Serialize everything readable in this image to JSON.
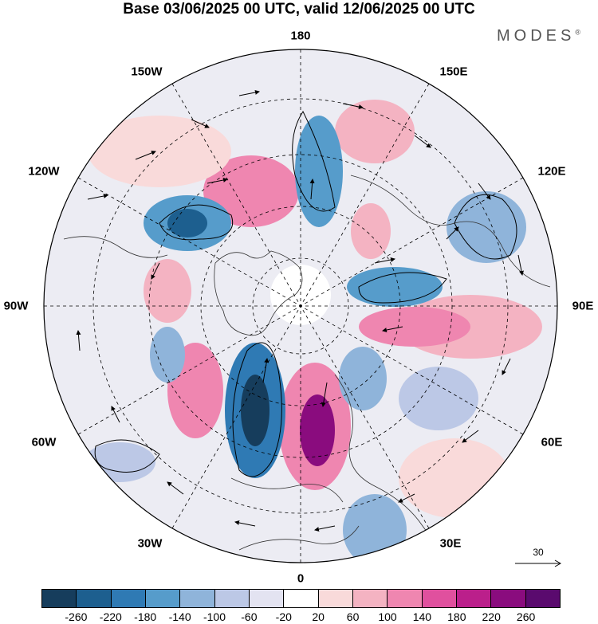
{
  "title": "Base 03/06/2025 00 UTC, valid 12/06/2025 00 UTC",
  "brand": "MODES",
  "brand_mark": "®",
  "longitude_labels": {
    "top": "180",
    "bottom": "0",
    "left": "90W",
    "right": "90E",
    "upper_left_1": "150W",
    "upper_left_2": "120W",
    "upper_right_1": "150E",
    "upper_right_2": "120E",
    "lower_left_1": "60W",
    "lower_left_2": "30W",
    "lower_right_1": "60E",
    "lower_right_2": "30E"
  },
  "vector_scale": {
    "label": "30"
  },
  "colorbar": {
    "colors": [
      "#163d5c",
      "#1d5f8f",
      "#2f7ab4",
      "#569ccb",
      "#8fb4da",
      "#bcc8e6",
      "#e3e3f1",
      "#ffffff",
      "#f9dada",
      "#f4b3c2",
      "#ef86b0",
      "#e0509e",
      "#bb1f8b",
      "#8a0c7e",
      "#5a0a6e"
    ],
    "ticks": [
      "-260",
      "-220",
      "-180",
      "-140",
      "-100",
      "-60",
      "-20",
      "20",
      "60",
      "100",
      "140",
      "180",
      "220",
      "260"
    ]
  }
}
